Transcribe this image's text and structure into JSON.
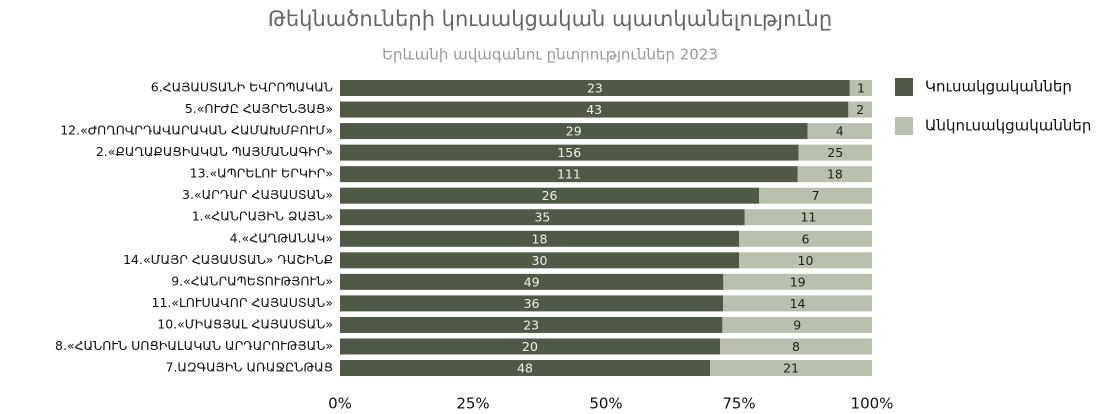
{
  "chart_data": {
    "type": "bar",
    "orientation": "horizontal",
    "stacked": "percent",
    "title": "Թեկնածուների կուսակցական պատկանելությունը",
    "subtitle": "Երևանի ավագանու ընտրություններ 2023",
    "categories": [
      "6.ՀԱՅԱՍՏԱՆԻ ԵՎՐՈՊԱԿԱՆ",
      "5.«ՈՒԺԸ ՀԱՅՐԵՆՅԱՑ»",
      "12.«ԺՈՂՈՎՐԴԱՎԱՐԱԿԱՆ ՀԱՄԱԽՄԲՈՒՄ»",
      "2.«ՔԱՂԱՔԱՑԻԱԿԱՆ ՊԱՅՄԱՆԱԳԻՐ»",
      "13.«ԱՊՐԵԼՈՒ ԵՐԿԻՐ»",
      "3.«ԱՐԴԱՐ ՀԱՅԱՍՏԱՆ»",
      "1.«ՀԱՆՐԱՅԻՆ ՁԱՅՆ»",
      "4.«ՀԱՂԹԱՆԱԿ»",
      "14.«ՄԱՅՐ ՀԱՅԱՍՏԱՆ» ԴԱՇԻՆՔ",
      "9.«ՀԱՆՐԱՊԵՏՈՒԹՅՈՒՆ»",
      "11.«ԼՈՒՍԱՎՈՐ ՀԱՅԱՍՏԱՆ»",
      "10.«ՄԻԱՑՅԱԼ ՀԱՅԱՍՏԱՆ»",
      "8.«ՀԱՆՈՒՆ ՍՈՑԻԱԼԱԿԱՆ ԱՐԴԱՐՈՒԹՅԱՆ»",
      "7.ԱԶԳԱՅԻՆ ԱՌԱՋԸՆԹԱՑ"
    ],
    "series": [
      {
        "name": "Կուսակցականներ",
        "color": "#4e5a46",
        "values": [
          23,
          43,
          29,
          156,
          111,
          26,
          35,
          18,
          30,
          49,
          36,
          23,
          20,
          48
        ]
      },
      {
        "name": "Անկուսակցականներ",
        "color": "#b7c1ad",
        "values": [
          1,
          2,
          4,
          25,
          18,
          7,
          11,
          6,
          10,
          19,
          14,
          9,
          8,
          21
        ]
      }
    ],
    "xlim": [
      0,
      100
    ],
    "xticks": [
      {
        "value": 0,
        "label": "0%"
      },
      {
        "value": 25,
        "label": "25%"
      },
      {
        "value": 50,
        "label": "50%"
      },
      {
        "value": 75,
        "label": "75%"
      },
      {
        "value": 100,
        "label": "100%"
      }
    ],
    "legend": "right"
  }
}
